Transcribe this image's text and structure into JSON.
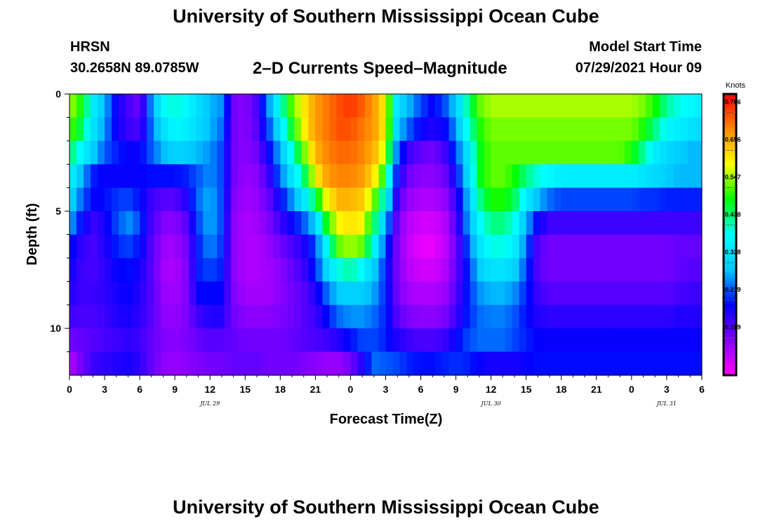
{
  "header": {
    "title": "University of Southern Mississippi Ocean Cube",
    "station": "HRSN",
    "coordinates": "30.2658N  89.0785W",
    "subtitle": "2–D Currents Speed–Magnitude",
    "model_start_label": "Model Start Time",
    "model_start_value": "07/29/2021 Hour 09"
  },
  "footer": {
    "title": "University of Southern Mississippi Ocean Cube"
  },
  "chart_data": {
    "type": "heatmap",
    "title": "2–D Currents Speed–Magnitude",
    "xlabel": "Forecast Time(Z)",
    "ylabel": "Depth (ft)",
    "x_range_hours": [
      0,
      54
    ],
    "y_range_ft": [
      0,
      12
    ],
    "x_tick_values": [
      0,
      3,
      6,
      9,
      12,
      15,
      18,
      21,
      24,
      27,
      30,
      33,
      36,
      39,
      42,
      45,
      48,
      51,
      54
    ],
    "x_tick_labels": [
      "0",
      "3",
      "6",
      "9",
      "12",
      "15",
      "18",
      "21",
      "0",
      "3",
      "6",
      "9",
      "12",
      "15",
      "18",
      "21",
      "0",
      "3",
      "6"
    ],
    "date_labels": [
      {
        "hour": 12,
        "text": "JUL 29"
      },
      {
        "hour": 36,
        "text": "JUL 30"
      },
      {
        "hour": 51,
        "text": "JUL 31"
      }
    ],
    "y_tick_values": [
      0,
      5,
      10
    ],
    "y_tick_labels": [
      "0",
      "5",
      "10"
    ],
    "colorbar": {
      "unit_label": "Knots",
      "min": 0.0,
      "max": 0.82,
      "tick_values": [
        0.109,
        0.219,
        0.328,
        0.438,
        0.547,
        0.656,
        0.766
      ],
      "tick_labels": [
        "0.109",
        "0.219",
        "0.328",
        "0.438",
        "0.547",
        "0.656",
        "0.766"
      ]
    },
    "depths_ft": [
      0.5,
      1.5,
      2.5,
      3.5,
      4.5,
      5.5,
      6.5,
      7.5,
      8.5,
      9.5,
      10.5,
      11.5
    ],
    "time_key_hours": [
      0,
      1,
      2,
      3,
      4,
      5,
      6,
      7,
      8,
      9,
      10,
      11,
      12,
      13,
      14,
      15,
      16,
      17,
      18,
      19,
      20,
      21,
      22,
      23,
      24,
      25,
      26,
      27,
      28,
      29,
      30,
      31,
      32,
      33,
      34,
      35,
      36,
      37,
      38,
      39,
      40,
      41,
      42,
      43,
      44,
      45,
      46,
      47,
      48,
      49,
      50,
      51,
      52,
      53,
      54
    ],
    "values_knots": [
      [
        0.58,
        0.52,
        0.38,
        0.3,
        0.2,
        0.15,
        0.12,
        0.28,
        0.4,
        0.43,
        0.4,
        0.35,
        0.3,
        0.28,
        0.12,
        0.1,
        0.15,
        0.28,
        0.42,
        0.55,
        0.63,
        0.7,
        0.73,
        0.76,
        0.78,
        0.75,
        0.7,
        0.62,
        0.35,
        0.3,
        0.24,
        0.2,
        0.24,
        0.32,
        0.45,
        0.55,
        0.58,
        0.58,
        0.58,
        0.58,
        0.58,
        0.58,
        0.58,
        0.58,
        0.58,
        0.58,
        0.58,
        0.58,
        0.58,
        0.56,
        0.52,
        0.45,
        0.42,
        0.4,
        0.38
      ],
      [
        0.55,
        0.48,
        0.36,
        0.28,
        0.2,
        0.16,
        0.15,
        0.26,
        0.35,
        0.4,
        0.38,
        0.34,
        0.3,
        0.26,
        0.12,
        0.1,
        0.14,
        0.24,
        0.36,
        0.5,
        0.62,
        0.7,
        0.73,
        0.76,
        0.76,
        0.73,
        0.7,
        0.62,
        0.32,
        0.25,
        0.2,
        0.18,
        0.2,
        0.28,
        0.42,
        0.52,
        0.56,
        0.56,
        0.56,
        0.56,
        0.56,
        0.56,
        0.56,
        0.56,
        0.56,
        0.56,
        0.56,
        0.56,
        0.56,
        0.52,
        0.46,
        0.4,
        0.38,
        0.36,
        0.34
      ],
      [
        0.48,
        0.4,
        0.32,
        0.25,
        0.22,
        0.2,
        0.2,
        0.25,
        0.3,
        0.33,
        0.32,
        0.3,
        0.28,
        0.24,
        0.12,
        0.1,
        0.12,
        0.2,
        0.3,
        0.42,
        0.55,
        0.68,
        0.72,
        0.74,
        0.74,
        0.72,
        0.68,
        0.58,
        0.25,
        0.16,
        0.13,
        0.12,
        0.15,
        0.24,
        0.36,
        0.5,
        0.55,
        0.55,
        0.55,
        0.55,
        0.55,
        0.55,
        0.55,
        0.55,
        0.55,
        0.55,
        0.55,
        0.55,
        0.52,
        0.45,
        0.38,
        0.34,
        0.32,
        0.3,
        0.3
      ],
      [
        0.4,
        0.3,
        0.22,
        0.2,
        0.2,
        0.2,
        0.2,
        0.21,
        0.21,
        0.21,
        0.22,
        0.25,
        0.28,
        0.24,
        0.12,
        0.09,
        0.1,
        0.16,
        0.26,
        0.36,
        0.46,
        0.62,
        0.7,
        0.72,
        0.72,
        0.7,
        0.64,
        0.5,
        0.2,
        0.12,
        0.1,
        0.1,
        0.12,
        0.2,
        0.34,
        0.5,
        0.55,
        0.55,
        0.52,
        0.46,
        0.42,
        0.4,
        0.38,
        0.38,
        0.38,
        0.38,
        0.38,
        0.38,
        0.38,
        0.36,
        0.34,
        0.32,
        0.3,
        0.3,
        0.3
      ],
      [
        0.35,
        0.26,
        0.2,
        0.21,
        0.23,
        0.24,
        0.21,
        0.16,
        0.14,
        0.14,
        0.18,
        0.26,
        0.3,
        0.24,
        0.11,
        0.08,
        0.09,
        0.13,
        0.2,
        0.28,
        0.36,
        0.48,
        0.62,
        0.68,
        0.68,
        0.66,
        0.56,
        0.4,
        0.15,
        0.09,
        0.07,
        0.07,
        0.09,
        0.16,
        0.3,
        0.45,
        0.52,
        0.52,
        0.48,
        0.38,
        0.3,
        0.26,
        0.24,
        0.24,
        0.24,
        0.24,
        0.24,
        0.24,
        0.24,
        0.23,
        0.23,
        0.22,
        0.22,
        0.22,
        0.22
      ],
      [
        0.3,
        0.21,
        0.16,
        0.19,
        0.24,
        0.28,
        0.24,
        0.15,
        0.11,
        0.1,
        0.14,
        0.24,
        0.3,
        0.24,
        0.1,
        0.07,
        0.08,
        0.11,
        0.16,
        0.2,
        0.25,
        0.32,
        0.52,
        0.62,
        0.64,
        0.62,
        0.48,
        0.3,
        0.12,
        0.06,
        0.04,
        0.04,
        0.06,
        0.14,
        0.28,
        0.4,
        0.46,
        0.46,
        0.42,
        0.3,
        0.2,
        0.16,
        0.16,
        0.16,
        0.16,
        0.16,
        0.16,
        0.16,
        0.16,
        0.16,
        0.16,
        0.16,
        0.16,
        0.16,
        0.16
      ],
      [
        0.22,
        0.17,
        0.15,
        0.18,
        0.22,
        0.24,
        0.21,
        0.14,
        0.09,
        0.08,
        0.12,
        0.22,
        0.28,
        0.23,
        0.1,
        0.07,
        0.07,
        0.09,
        0.12,
        0.15,
        0.18,
        0.24,
        0.4,
        0.55,
        0.58,
        0.55,
        0.4,
        0.24,
        0.11,
        0.05,
        0.02,
        0.02,
        0.05,
        0.12,
        0.24,
        0.36,
        0.42,
        0.42,
        0.38,
        0.26,
        0.14,
        0.12,
        0.12,
        0.12,
        0.12,
        0.12,
        0.12,
        0.12,
        0.12,
        0.12,
        0.12,
        0.12,
        0.13,
        0.13,
        0.13
      ],
      [
        0.2,
        0.16,
        0.15,
        0.17,
        0.2,
        0.21,
        0.19,
        0.14,
        0.08,
        0.07,
        0.11,
        0.22,
        0.24,
        0.22,
        0.1,
        0.07,
        0.07,
        0.08,
        0.1,
        0.13,
        0.16,
        0.22,
        0.34,
        0.42,
        0.45,
        0.4,
        0.32,
        0.22,
        0.11,
        0.06,
        0.04,
        0.04,
        0.06,
        0.13,
        0.22,
        0.32,
        0.36,
        0.36,
        0.33,
        0.24,
        0.14,
        0.12,
        0.12,
        0.12,
        0.12,
        0.12,
        0.12,
        0.12,
        0.12,
        0.12,
        0.12,
        0.12,
        0.13,
        0.14,
        0.14
      ],
      [
        0.18,
        0.16,
        0.16,
        0.17,
        0.19,
        0.2,
        0.18,
        0.14,
        0.09,
        0.08,
        0.11,
        0.2,
        0.21,
        0.2,
        0.11,
        0.08,
        0.08,
        0.08,
        0.1,
        0.12,
        0.14,
        0.18,
        0.26,
        0.32,
        0.33,
        0.32,
        0.29,
        0.22,
        0.12,
        0.08,
        0.07,
        0.07,
        0.08,
        0.14,
        0.22,
        0.28,
        0.3,
        0.3,
        0.28,
        0.22,
        0.16,
        0.14,
        0.14,
        0.14,
        0.14,
        0.14,
        0.14,
        0.14,
        0.14,
        0.14,
        0.14,
        0.14,
        0.15,
        0.16,
        0.16
      ],
      [
        0.16,
        0.15,
        0.15,
        0.16,
        0.18,
        0.19,
        0.17,
        0.14,
        0.1,
        0.09,
        0.11,
        0.16,
        0.18,
        0.18,
        0.12,
        0.1,
        0.1,
        0.1,
        0.11,
        0.12,
        0.14,
        0.16,
        0.21,
        0.26,
        0.28,
        0.28,
        0.26,
        0.22,
        0.14,
        0.11,
        0.1,
        0.1,
        0.11,
        0.16,
        0.22,
        0.26,
        0.27,
        0.27,
        0.25,
        0.21,
        0.18,
        0.17,
        0.17,
        0.17,
        0.17,
        0.17,
        0.17,
        0.17,
        0.17,
        0.17,
        0.17,
        0.17,
        0.18,
        0.18,
        0.18
      ],
      [
        0.12,
        0.13,
        0.14,
        0.15,
        0.16,
        0.17,
        0.16,
        0.13,
        0.11,
        0.1,
        0.11,
        0.13,
        0.14,
        0.14,
        0.13,
        0.12,
        0.12,
        0.12,
        0.12,
        0.13,
        0.14,
        0.15,
        0.16,
        0.18,
        0.21,
        0.24,
        0.24,
        0.22,
        0.18,
        0.16,
        0.15,
        0.15,
        0.16,
        0.2,
        0.24,
        0.26,
        0.26,
        0.26,
        0.24,
        0.22,
        0.2,
        0.2,
        0.2,
        0.2,
        0.2,
        0.2,
        0.2,
        0.2,
        0.2,
        0.2,
        0.2,
        0.2,
        0.2,
        0.2,
        0.2
      ],
      [
        0.06,
        0.12,
        0.16,
        0.17,
        0.18,
        0.19,
        0.17,
        0.13,
        0.1,
        0.09,
        0.1,
        0.11,
        0.12,
        0.12,
        0.13,
        0.13,
        0.13,
        0.12,
        0.12,
        0.12,
        0.11,
        0.1,
        0.09,
        0.09,
        0.12,
        0.18,
        0.26,
        0.25,
        0.24,
        0.22,
        0.21,
        0.21,
        0.22,
        0.23,
        0.22,
        0.2,
        0.19,
        0.19,
        0.19,
        0.2,
        0.21,
        0.21,
        0.21,
        0.21,
        0.21,
        0.21,
        0.21,
        0.21,
        0.21,
        0.21,
        0.21,
        0.21,
        0.21,
        0.21,
        0.21
      ]
    ]
  },
  "colors": {
    "scale": [
      "#ff00ff",
      "#8800ff",
      "#0000ff",
      "#00c8ff",
      "#00ffff",
      "#00ff00",
      "#ffff00",
      "#ff8800",
      "#ff0000"
    ],
    "background": "#ffffff",
    "axis": "#000000",
    "frame_outline": "#000000",
    "colorbar_frame": "#000000"
  }
}
